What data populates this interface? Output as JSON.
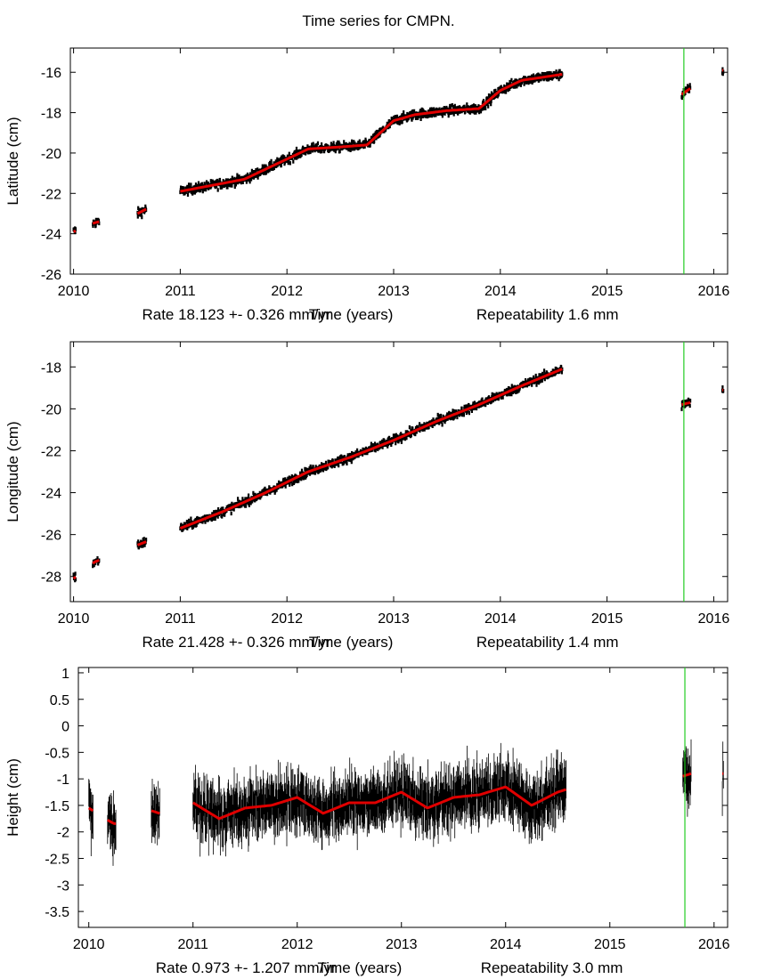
{
  "chart_data": {
    "title": "Time series for CMPN.",
    "break_line_x": 2015.72,
    "panels": [
      {
        "type": "scatter",
        "name": "latitude",
        "ylabel": "Latitude (cm)",
        "xlabel_rate": "Rate 18.123 +- 0.326 mm/yr",
        "xlabel_center": "Time (years)",
        "xlabel_repeat": "Repeatability 1.6 mm",
        "xlim": [
          2009.97,
          2016.13
        ],
        "ylim": [
          -26,
          -14.8
        ],
        "xticks": [
          "2010",
          "2011",
          "2012",
          "2013",
          "2014",
          "2015",
          "2016"
        ],
        "yticks": [
          -26,
          -24,
          -22,
          -20,
          -18,
          -16
        ],
        "noise": 0.22,
        "segments": [
          [
            2010.0,
            2010.02
          ],
          [
            2010.18,
            2010.24
          ],
          [
            2010.6,
            2010.68
          ],
          [
            2011.0,
            2014.58
          ],
          [
            2015.7,
            2015.78
          ],
          [
            2016.08,
            2016.09
          ]
        ],
        "trend": [
          [
            2010.0,
            -23.9
          ],
          [
            2010.2,
            -23.45
          ],
          [
            2010.6,
            -23.0
          ],
          [
            2011.0,
            -21.9
          ],
          [
            2011.3,
            -21.6
          ],
          [
            2011.6,
            -21.3
          ],
          [
            2011.8,
            -20.8
          ],
          [
            2012.0,
            -20.3
          ],
          [
            2012.2,
            -19.8
          ],
          [
            2012.5,
            -19.7
          ],
          [
            2012.75,
            -19.6
          ],
          [
            2013.0,
            -18.4
          ],
          [
            2013.2,
            -18.1
          ],
          [
            2013.5,
            -17.9
          ],
          [
            2013.8,
            -17.8
          ],
          [
            2014.0,
            -16.9
          ],
          [
            2014.2,
            -16.4
          ],
          [
            2014.58,
            -16.1
          ],
          [
            2015.7,
            -17.1
          ],
          [
            2015.78,
            -16.8
          ],
          [
            2016.08,
            -15.9
          ]
        ]
      },
      {
        "type": "scatter",
        "name": "longitude",
        "ylabel": "Longitude (cm)",
        "xlabel_rate": "Rate 21.428 +- 0.326 mm/yr",
        "xlabel_center": "Time (years)",
        "xlabel_repeat": "Repeatability 1.4 mm",
        "xlim": [
          2009.97,
          2016.13
        ],
        "ylim": [
          -29.2,
          -16.8
        ],
        "xticks": [
          "2010",
          "2011",
          "2012",
          "2013",
          "2014",
          "2015",
          "2016"
        ],
        "yticks": [
          -28,
          -26,
          -24,
          -22,
          -20,
          -18
        ],
        "noise": 0.2,
        "segments": [
          [
            2010.0,
            2010.02
          ],
          [
            2010.18,
            2010.24
          ],
          [
            2010.6,
            2010.68
          ],
          [
            2011.0,
            2014.58
          ],
          [
            2015.7,
            2015.78
          ],
          [
            2016.08,
            2016.09
          ]
        ],
        "trend": [
          [
            2010.0,
            -28.1
          ],
          [
            2010.2,
            -27.3
          ],
          [
            2010.6,
            -26.5
          ],
          [
            2011.0,
            -25.7
          ],
          [
            2011.4,
            -24.9
          ],
          [
            2011.8,
            -24.0
          ],
          [
            2012.2,
            -23.0
          ],
          [
            2012.6,
            -22.3
          ],
          [
            2013.0,
            -21.5
          ],
          [
            2013.4,
            -20.6
          ],
          [
            2013.8,
            -19.8
          ],
          [
            2014.2,
            -18.9
          ],
          [
            2014.58,
            -18.1
          ],
          [
            2015.7,
            -19.8
          ],
          [
            2015.78,
            -19.7
          ],
          [
            2016.08,
            -19.1
          ]
        ]
      },
      {
        "type": "line",
        "name": "height",
        "ylabel": "Height (cm)",
        "xlabel_rate": "Rate 0.973 +- 1.207 mm/yr",
        "xlabel_center": "Time (years)",
        "xlabel_repeat": "Repeatability 3.0 mm",
        "xlim": [
          2009.9,
          2016.13
        ],
        "ylim": [
          -3.8,
          1.1
        ],
        "xticks": [
          "2010",
          "2011",
          "2012",
          "2013",
          "2014",
          "2015",
          "2016"
        ],
        "ytick_values": [
          1,
          0.5,
          0,
          -0.5,
          -1,
          -1.5,
          -2,
          -2.5,
          -3,
          -3.5
        ],
        "ytick_labels": [
          "1",
          "0.5",
          "0",
          "-0.5",
          "-1",
          "-1.5",
          "-2",
          "-2.5",
          "-3",
          "-3.5"
        ],
        "noise": 0.35,
        "segments": [
          [
            2010.0,
            2010.04
          ],
          [
            2010.18,
            2010.26
          ],
          [
            2010.6,
            2010.68
          ],
          [
            2011.0,
            2014.58
          ],
          [
            2015.7,
            2015.78
          ],
          [
            2016.08,
            2016.09
          ]
        ],
        "trend": [
          [
            2010.0,
            -1.55
          ],
          [
            2010.2,
            -1.8
          ],
          [
            2010.25,
            -1.85
          ],
          [
            2010.6,
            -1.6
          ],
          [
            2010.68,
            -1.65
          ],
          [
            2011.0,
            -1.45
          ],
          [
            2011.25,
            -1.75
          ],
          [
            2011.5,
            -1.55
          ],
          [
            2011.75,
            -1.5
          ],
          [
            2012.0,
            -1.35
          ],
          [
            2012.25,
            -1.65
          ],
          [
            2012.5,
            -1.45
          ],
          [
            2012.75,
            -1.45
          ],
          [
            2013.0,
            -1.25
          ],
          [
            2013.25,
            -1.55
          ],
          [
            2013.5,
            -1.35
          ],
          [
            2013.75,
            -1.3
          ],
          [
            2014.0,
            -1.15
          ],
          [
            2014.25,
            -1.5
          ],
          [
            2014.5,
            -1.25
          ],
          [
            2014.58,
            -1.2
          ],
          [
            2015.7,
            -0.95
          ],
          [
            2015.78,
            -0.9
          ],
          [
            2016.08,
            -0.9
          ]
        ]
      }
    ]
  }
}
